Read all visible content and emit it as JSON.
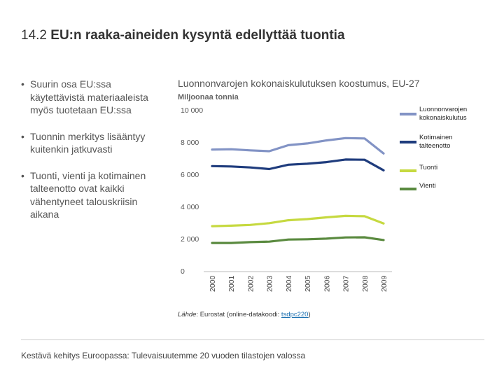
{
  "page": {
    "number": "14.2",
    "title": "EU:n raaka-aineiden kysyntä edellyttää tuontia"
  },
  "bullets": [
    "Suurin osa EU:ssa käytettävistä materiaaleista myös tuotetaan EU:ssa",
    "Tuonnin merkitys lisääntyy kuitenkin jatkuvasti",
    "Tuonti, vienti ja kotimainen talteenotto ovat kaikki vähentyneet talouskriisin aikana"
  ],
  "source": {
    "label": "Lähde",
    "text": ": Eurostat (online-datakoodi: ",
    "code": "tsdpc220",
    "close": ")"
  },
  "footer": "Kestävä kehitys Euroopassa: Tulevaisuutemme 20 vuoden tilastojen valossa",
  "chart_data": {
    "type": "line",
    "title": "Luonnonvarojen kokonaiskulutuksen koostumus, EU-27",
    "ylabel": "Miljoonaa tonnia",
    "xlabel": "",
    "x": [
      "2000",
      "2001",
      "2002",
      "2003",
      "2004",
      "2005",
      "2006",
      "2007",
      "2008",
      "2009"
    ],
    "ylim": [
      0,
      10000
    ],
    "yticks": [
      0,
      2000,
      4000,
      6000,
      8000,
      10000
    ],
    "ytick_labels": [
      "0",
      "2 000",
      "4 000",
      "6 000",
      "8 000",
      "10 000"
    ],
    "grid": false,
    "legend_position": "right",
    "series": [
      {
        "name": "Luonnonvarojen kokonaiskulutus",
        "legend_lines": [
          "Luonnonvarojen",
          "kokonaiskulutus"
        ],
        "color": "#8293c5",
        "values": [
          7580,
          7600,
          7530,
          7480,
          7850,
          7960,
          8150,
          8290,
          8270,
          7340
        ]
      },
      {
        "name": "Kotimainen talteenotto",
        "legend_lines": [
          "Kotimainen",
          "talteenotto"
        ],
        "color": "#1f3c7d",
        "values": [
          6550,
          6530,
          6470,
          6370,
          6640,
          6700,
          6800,
          6960,
          6950,
          6290
        ]
      },
      {
        "name": "Tuonti",
        "legend_lines": [
          "Tuonti"
        ],
        "color": "#c6d940",
        "values": [
          2820,
          2850,
          2900,
          3010,
          3190,
          3260,
          3370,
          3460,
          3440,
          2990
        ]
      },
      {
        "name": "Vienti",
        "legend_lines": [
          "Vienti"
        ],
        "color": "#5a8a3f",
        "values": [
          1780,
          1780,
          1830,
          1860,
          1990,
          2010,
          2050,
          2120,
          2130,
          1960
        ]
      }
    ]
  }
}
